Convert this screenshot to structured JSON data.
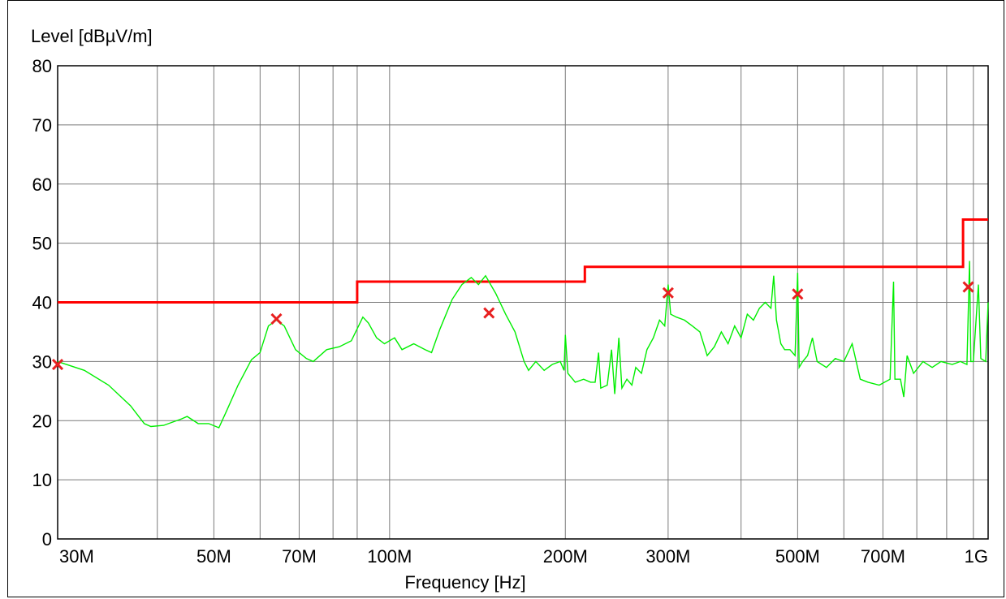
{
  "chart_data": {
    "type": "line",
    "title": "",
    "ylabel": "Level [dBµV/m]",
    "xlabel": "Frequency [Hz]",
    "x_scale": "log",
    "xlim": [
      27000000,
      1060000000
    ],
    "ylim": [
      0,
      80
    ],
    "grid": true,
    "y_ticks": [
      0,
      10,
      20,
      30,
      40,
      50,
      60,
      70,
      80
    ],
    "x_ticks": [
      {
        "value": 30000000,
        "label": "30M"
      },
      {
        "value": 50000000,
        "label": "50M"
      },
      {
        "value": 70000000,
        "label": "70M"
      },
      {
        "value": 100000000,
        "label": "100M"
      },
      {
        "value": 200000000,
        "label": "200M"
      },
      {
        "value": 300000000,
        "label": "300M"
      },
      {
        "value": 500000000,
        "label": "500M"
      },
      {
        "value": 700000000,
        "label": "700M"
      },
      {
        "value": 1000000000,
        "label": "1G"
      }
    ],
    "x_gridlines": [
      27000000,
      40000000,
      50000000,
      60000000,
      70000000,
      80000000,
      88000000,
      100000000,
      200000000,
      300000000,
      400000000,
      500000000,
      600000000,
      700000000,
      800000000,
      900000000,
      1000000000
    ],
    "series": [
      {
        "role": "limit",
        "color": "#ff0000",
        "points": [
          [
            27000000,
            40
          ],
          [
            88000000,
            40
          ],
          [
            88000000,
            43.5
          ],
          [
            216000000,
            43.5
          ],
          [
            216000000,
            46
          ],
          [
            960000000,
            46
          ],
          [
            960000000,
            54
          ],
          [
            1060000000,
            54
          ]
        ]
      },
      {
        "role": "measurement",
        "color": "#00ee00",
        "points": [
          [
            27000000,
            30
          ],
          [
            30000000,
            28.5
          ],
          [
            33000000,
            26
          ],
          [
            36000000,
            22.5
          ],
          [
            38000000,
            19.5
          ],
          [
            39000000,
            19
          ],
          [
            41000000,
            19.2
          ],
          [
            44000000,
            20.3
          ],
          [
            45000000,
            20.7
          ],
          [
            47000000,
            19.5
          ],
          [
            49000000,
            19.5
          ],
          [
            51000000,
            18.8
          ],
          [
            52500000,
            21.5
          ],
          [
            55000000,
            26
          ],
          [
            58000000,
            30.3
          ],
          [
            60000000,
            31.5
          ],
          [
            62000000,
            36
          ],
          [
            64000000,
            37
          ],
          [
            66000000,
            36
          ],
          [
            69000000,
            32
          ],
          [
            72000000,
            30.5
          ],
          [
            74000000,
            30
          ],
          [
            78000000,
            32
          ],
          [
            82000000,
            32.5
          ],
          [
            86000000,
            33.5
          ],
          [
            90000000,
            37.5
          ],
          [
            92000000,
            36.5
          ],
          [
            95000000,
            34
          ],
          [
            98000000,
            33
          ],
          [
            102000000,
            34
          ],
          [
            105000000,
            32
          ],
          [
            110000000,
            33
          ],
          [
            115000000,
            32
          ],
          [
            118000000,
            31.5
          ],
          [
            122000000,
            35.5
          ],
          [
            128000000,
            40.5
          ],
          [
            133000000,
            43
          ],
          [
            138000000,
            44.2
          ],
          [
            142000000,
            43
          ],
          [
            146000000,
            44.5
          ],
          [
            152000000,
            41.5
          ],
          [
            158000000,
            38
          ],
          [
            164000000,
            35
          ],
          [
            170000000,
            30
          ],
          [
            173000000,
            28.5
          ],
          [
            178000000,
            30
          ],
          [
            184000000,
            28.5
          ],
          [
            190000000,
            29.5
          ],
          [
            196000000,
            30
          ],
          [
            199000000,
            28.5
          ],
          [
            200000000,
            34.5
          ],
          [
            202000000,
            28
          ],
          [
            208000000,
            26.5
          ],
          [
            215000000,
            27
          ],
          [
            221000000,
            26.5
          ],
          [
            225000000,
            26.5
          ],
          [
            228000000,
            31.5
          ],
          [
            230000000,
            25.5
          ],
          [
            236000000,
            26
          ],
          [
            240000000,
            32
          ],
          [
            243000000,
            24.5
          ],
          [
            247000000,
            34
          ],
          [
            250000000,
            25.5
          ],
          [
            255000000,
            27
          ],
          [
            260000000,
            26
          ],
          [
            264000000,
            29
          ],
          [
            270000000,
            28
          ],
          [
            276000000,
            32
          ],
          [
            283000000,
            34
          ],
          [
            290000000,
            37
          ],
          [
            296000000,
            36
          ],
          [
            300000000,
            43
          ],
          [
            303000000,
            38
          ],
          [
            310000000,
            37.5
          ],
          [
            320000000,
            37
          ],
          [
            330000000,
            36
          ],
          [
            340000000,
            35
          ],
          [
            350000000,
            31
          ],
          [
            360000000,
            32.5
          ],
          [
            370000000,
            35
          ],
          [
            380000000,
            33
          ],
          [
            390000000,
            36
          ],
          [
            400000000,
            34
          ],
          [
            410000000,
            38
          ],
          [
            420000000,
            37
          ],
          [
            430000000,
            39
          ],
          [
            440000000,
            40
          ],
          [
            450000000,
            39
          ],
          [
            455000000,
            44.5
          ],
          [
            460000000,
            37
          ],
          [
            468000000,
            33
          ],
          [
            475000000,
            32
          ],
          [
            485000000,
            32
          ],
          [
            495000000,
            31
          ],
          [
            500000000,
            45
          ],
          [
            503000000,
            29
          ],
          [
            510000000,
            30
          ],
          [
            520000000,
            31
          ],
          [
            530000000,
            34
          ],
          [
            540000000,
            30
          ],
          [
            560000000,
            29
          ],
          [
            580000000,
            30.5
          ],
          [
            600000000,
            30
          ],
          [
            620000000,
            33
          ],
          [
            640000000,
            27
          ],
          [
            660000000,
            26.5
          ],
          [
            690000000,
            26
          ],
          [
            720000000,
            27
          ],
          [
            730000000,
            43.5
          ],
          [
            734000000,
            27
          ],
          [
            750000000,
            27
          ],
          [
            760000000,
            24
          ],
          [
            770000000,
            31
          ],
          [
            790000000,
            28
          ],
          [
            820000000,
            30
          ],
          [
            850000000,
            29
          ],
          [
            880000000,
            30
          ],
          [
            920000000,
            29.5
          ],
          [
            950000000,
            30
          ],
          [
            975000000,
            29.5
          ],
          [
            985000000,
            47
          ],
          [
            990000000,
            30
          ],
          [
            1000000000,
            30
          ],
          [
            1020000000,
            43
          ],
          [
            1030000000,
            30.5
          ],
          [
            1050000000,
            30
          ],
          [
            1060000000,
            40
          ]
        ]
      }
    ],
    "markers": [
      {
        "x": 27000000,
        "y": 29.5,
        "symbol": "x",
        "color": "#e82020"
      },
      {
        "x": 64000000,
        "y": 37.2,
        "symbol": "x",
        "color": "#e82020"
      },
      {
        "x": 148000000,
        "y": 38.2,
        "symbol": "x",
        "color": "#e82020"
      },
      {
        "x": 300000000,
        "y": 41.6,
        "symbol": "x",
        "color": "#e82020"
      },
      {
        "x": 500000000,
        "y": 41.4,
        "symbol": "x",
        "color": "#e82020"
      },
      {
        "x": 980000000,
        "y": 42.6,
        "symbol": "x",
        "color": "#e82020"
      }
    ]
  }
}
